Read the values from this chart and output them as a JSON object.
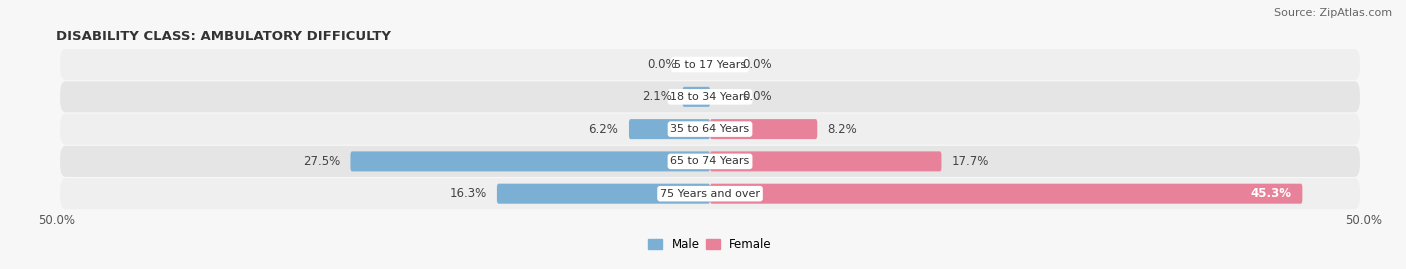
{
  "title": "DISABILITY CLASS: AMBULATORY DIFFICULTY",
  "source": "Source: ZipAtlas.com",
  "categories": [
    "5 to 17 Years",
    "18 to 34 Years",
    "35 to 64 Years",
    "65 to 74 Years",
    "75 Years and over"
  ],
  "male_values": [
    0.0,
    2.1,
    6.2,
    27.5,
    16.3
  ],
  "female_values": [
    0.0,
    0.0,
    8.2,
    17.7,
    45.3
  ],
  "male_color": "#7bafd4",
  "female_color": "#e8829a",
  "row_bg_color_odd": "#efefef",
  "row_bg_color_even": "#e5e5e5",
  "axis_limit": 50.0,
  "bar_height": 0.62,
  "title_fontsize": 9.5,
  "label_fontsize": 8.5,
  "tick_fontsize": 8.5,
  "source_fontsize": 8,
  "category_fontsize": 8
}
